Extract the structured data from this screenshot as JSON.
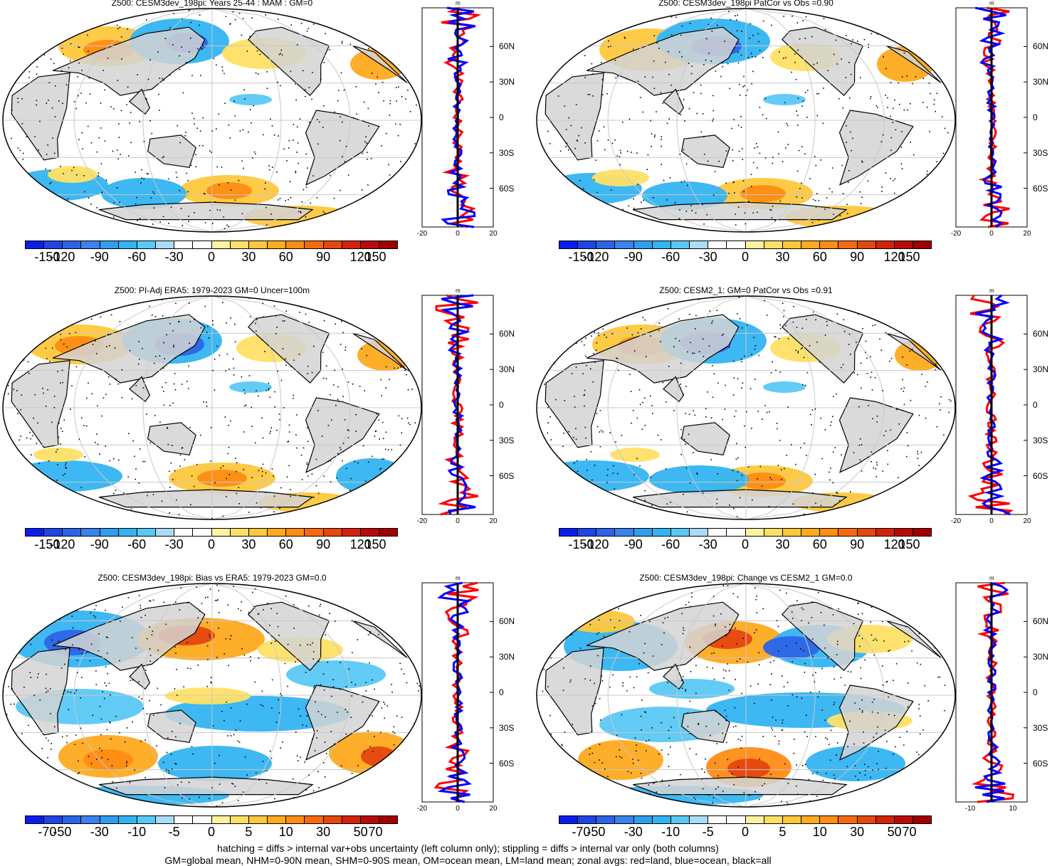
{
  "panels": [
    {
      "title": "Z500: CESM3dev_198pi: Years 25-44 : MAM : GM=0",
      "scale": "main",
      "variant": 0,
      "zonal": {
        "xticks": [
          "-20",
          "0",
          "20"
        ],
        "unit": "m"
      }
    },
    {
      "title": "Z500: CESM3dev_198pi PatCor vs Obs =0.90",
      "scale": "main",
      "variant": 1,
      "zonal": {
        "xticks": [
          "-20",
          "0",
          "20"
        ],
        "unit": "m"
      }
    },
    {
      "title": "Z500: PI-Adj ERA5: 1979-2023 GM=0 Uncer=100m",
      "scale": "main",
      "variant": 2,
      "zonal": {
        "xticks": [
          "-20",
          "0",
          "20"
        ],
        "unit": "m"
      }
    },
    {
      "title": "Z500: CESM2_1: GM=0 PatCor vs Obs =0.91",
      "scale": "main",
      "variant": 3,
      "zonal": {
        "xticks": [
          "-20",
          "0",
          "20"
        ],
        "unit": "m"
      }
    },
    {
      "title": "Z500: CESM3dev_198pi: Bias vs ERA5: 1979-2023 GM=0.0",
      "scale": "diff",
      "variant": 4,
      "zonal": {
        "xticks": [
          "-20",
          "0",
          "20"
        ],
        "unit": "m"
      }
    },
    {
      "title": "Z500: CESM3dev_198pi: Change vs CESM2_1 GM=0.0",
      "scale": "diff",
      "variant": 5,
      "zonal": {
        "xticks": [
          "-10",
          "10"
        ],
        "unit": "m"
      }
    }
  ],
  "lat_labels": [
    "60N",
    "30N",
    "0",
    "30S",
    "60S"
  ],
  "colorbars": {
    "main": {
      "labels": [
        "-150",
        "-120",
        "-90",
        "-60",
        "-30",
        "0",
        "30",
        "60",
        "90",
        "120",
        "150"
      ]
    },
    "diff": {
      "labels": [
        "-70",
        "-50",
        "-30",
        "-10",
        "-5",
        "0",
        "5",
        "10",
        "30",
        "50",
        "70"
      ]
    }
  },
  "colorbar_colors": [
    "#0a1eeb",
    "#1e46e6",
    "#2d64e6",
    "#3a82ec",
    "#2f9ef0",
    "#33b4f2",
    "#5ac8f5",
    "#a9dcf5",
    "#ffffff",
    "#ffffff",
    "#fff3a0",
    "#ffe066",
    "#ffc83c",
    "#ffaa1e",
    "#ff8c14",
    "#f56a0f",
    "#e6460f",
    "#d2230a",
    "#b90a0a",
    "#a00000"
  ],
  "colors": {
    "land": "#d3d3d3",
    "blue_line": "#0000ff",
    "red_line": "#ff0000",
    "ocean": "#ffffff"
  },
  "footer": {
    "line1": "hatching = diffs > internal var+obs uncertainty (left column only); stippling = diffs > internal var only (both columns)",
    "line2": "GM=global mean, NHM=0-90N mean, SHM=0-90S mean, OM=ocean mean, LM=land mean; zonal avgs: red=land, blue=ocean, black=all"
  }
}
